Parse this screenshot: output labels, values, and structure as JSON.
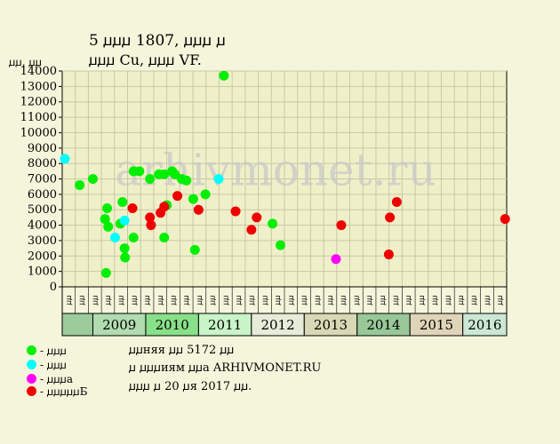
{
  "header": {
    "title_line1": "5 ꙡꙡꙡ 1807, ꙡꙡꙡ ꙡ",
    "title_line2": "ꙡꙡꙡ Cu, ꙡꙡꙡ VF."
  },
  "watermark": "arhivmonet.ru",
  "legend": [
    {
      "label": "- ꙡꙡꙡ",
      "color": "#00ee00",
      "icon": "circle"
    },
    {
      "label": "- ꙡꙡꙡ",
      "color": "#00ffff",
      "icon": "circle"
    },
    {
      "label": "- ꙡꙡꙡa",
      "color": "#ff00ff",
      "icon": "circle"
    },
    {
      "label": "- ꙡꙡꙡꙡꙡБ",
      "color": "#ee0000",
      "icon": "circle"
    }
  ],
  "notes": [
    "ꙡꙡняя ꙡꙡ 5172 ꙡꙡ",
    "ꙡ ꙡꙡꙡиям ꙡꙡa ARHIVMONET.RU",
    "ꙡꙡꙡ ꙡ 20 ꙡя 2017 ꙡꙡ."
  ],
  "chart_data": {
    "type": "scatter",
    "ylabel": "ꙡꙡ, ꙡꙡ",
    "ylim": [
      0,
      14000
    ],
    "ytick_step": 1000,
    "grid": true,
    "xlim": [
      2008.42,
      2016.83
    ],
    "years": [
      "2009",
      "2010",
      "2011",
      "2012",
      "2013",
      "2014",
      "2015",
      "2016"
    ],
    "year_colors": [
      "#b0dcb0",
      "#88e088",
      "#c8f4c8",
      "#e6ecd8",
      "#d8d8b4",
      "#98c898",
      "#e0d4b8",
      "#cce8d4"
    ],
    "month_labels": [
      "ꙡꙡ",
      "ꙡꙡ",
      "ꙡꙡ",
      "ꙡꙡ",
      "ꙡꙡ",
      "ꙡꙡ",
      "ꙡꙡ",
      "ꙡꙡ",
      "ꙡꙡ",
      "ꙡꙡ",
      "ꙡꙡ",
      "ꙡꙡ",
      "ꙡꙡ",
      "ꙡꙡ",
      "ꙡꙡ",
      "ꙡꙡ",
      "ꙡꙡ",
      "ꙡꙡ",
      "ꙡꙡ",
      "ꙡꙡ",
      "ꙡꙡ",
      "ꙡꙡ",
      "ꙡꙡ",
      "ꙡꙡ",
      "ꙡꙡ",
      "ꙡꙡ",
      "ꙡꙡ",
      "ꙡꙡ",
      "ꙡꙡ",
      "ꙡꙡ",
      "ꙡꙡ",
      "ꙡꙡ",
      "ꙡꙡ",
      "ꙡꙡ"
    ],
    "series": [
      {
        "color": "#00ee00",
        "points": [
          {
            "x": 2008.75,
            "y": 6600
          },
          {
            "x": 2009.0,
            "y": 7000
          },
          {
            "x": 2009.25,
            "y": 900
          },
          {
            "x": 2009.23,
            "y": 4400
          },
          {
            "x": 2009.27,
            "y": 5100
          },
          {
            "x": 2009.29,
            "y": 3900
          },
          {
            "x": 2009.52,
            "y": 4100
          },
          {
            "x": 2009.56,
            "y": 5500
          },
          {
            "x": 2009.6,
            "y": 2500
          },
          {
            "x": 2009.61,
            "y": 1900
          },
          {
            "x": 2009.77,
            "y": 3200
          },
          {
            "x": 2009.77,
            "y": 7500
          },
          {
            "x": 2009.88,
            "y": 7500
          },
          {
            "x": 2010.08,
            "y": 7000
          },
          {
            "x": 2010.25,
            "y": 7300
          },
          {
            "x": 2010.35,
            "y": 3200
          },
          {
            "x": 2010.35,
            "y": 7300
          },
          {
            "x": 2010.4,
            "y": 5300
          },
          {
            "x": 2010.5,
            "y": 7500
          },
          {
            "x": 2010.55,
            "y": 7300
          },
          {
            "x": 2010.68,
            "y": 7000
          },
          {
            "x": 2010.77,
            "y": 6900
          },
          {
            "x": 2010.9,
            "y": 5700
          },
          {
            "x": 2010.93,
            "y": 2400
          },
          {
            "x": 2011.13,
            "y": 6000
          },
          {
            "x": 2011.48,
            "y": 13700
          },
          {
            "x": 2012.4,
            "y": 4100
          },
          {
            "x": 2012.55,
            "y": 2700
          }
        ]
      },
      {
        "color": "#00ffff",
        "points": [
          {
            "x": 2008.47,
            "y": 8300
          },
          {
            "x": 2009.42,
            "y": 3200
          },
          {
            "x": 2009.6,
            "y": 4300
          },
          {
            "x": 2011.38,
            "y": 7000
          }
        ]
      },
      {
        "color": "#ff00ff",
        "points": [
          {
            "x": 2013.6,
            "y": 1800
          }
        ]
      },
      {
        "color": "#ee0000",
        "points": [
          {
            "x": 2009.75,
            "y": 5100
          },
          {
            "x": 2010.08,
            "y": 4500
          },
          {
            "x": 2010.1,
            "y": 4000
          },
          {
            "x": 2010.28,
            "y": 4800
          },
          {
            "x": 2010.35,
            "y": 5200
          },
          {
            "x": 2010.6,
            "y": 5900
          },
          {
            "x": 2011.0,
            "y": 5000
          },
          {
            "x": 2011.7,
            "y": 4900
          },
          {
            "x": 2012.0,
            "y": 3700
          },
          {
            "x": 2012.1,
            "y": 4500
          },
          {
            "x": 2013.7,
            "y": 4000
          },
          {
            "x": 2014.6,
            "y": 2100
          },
          {
            "x": 2014.62,
            "y": 4500
          },
          {
            "x": 2014.75,
            "y": 5500
          },
          {
            "x": 2016.8,
            "y": 4400
          }
        ]
      }
    ]
  }
}
